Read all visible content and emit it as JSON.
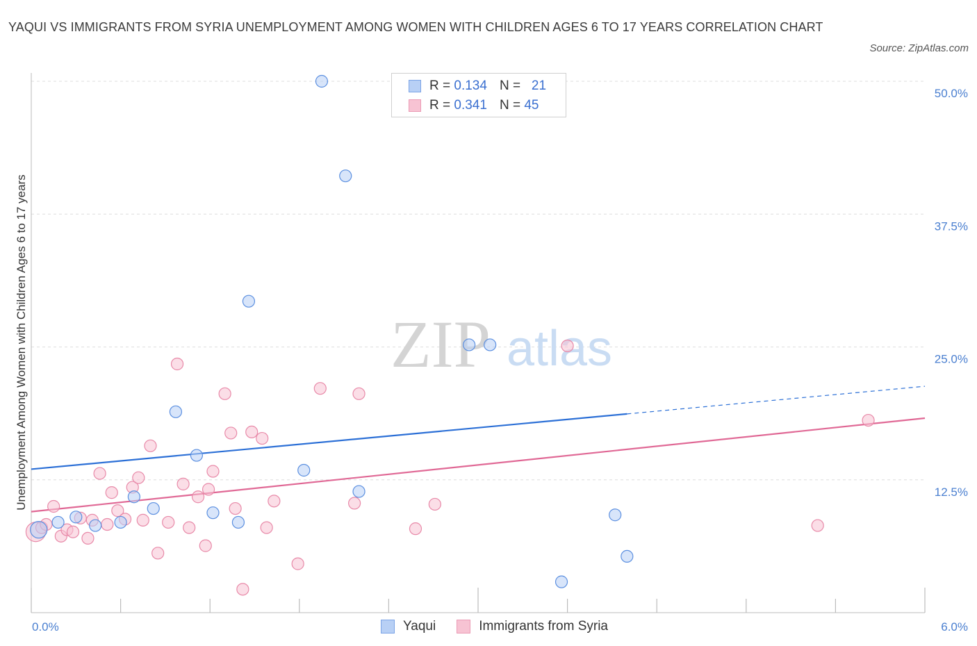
{
  "title": "YAQUI VS IMMIGRANTS FROM SYRIA UNEMPLOYMENT AMONG WOMEN WITH CHILDREN AGES 6 TO 17 YEARS CORRELATION CHART",
  "source": "Source: ZipAtlas.com",
  "watermark": {
    "zip": "ZIP",
    "atlas": "atlas"
  },
  "colors": {
    "blue": "#5b8fe0",
    "blue_fill": "#b8d0f5",
    "blue_line": "#2b6fd6",
    "pink": "#e889a8",
    "pink_fill": "#f7c3d3",
    "pink_line": "#e06895",
    "tick_text": "#4a7fd0"
  },
  "legend": {
    "rows": [
      {
        "r_label": "R =",
        "r_value": "0.134",
        "n_label": "N =",
        "n_value": "21"
      },
      {
        "r_label": "R =",
        "r_value": "0.341",
        "n_label": "N =",
        "n_value": "45"
      }
    ]
  },
  "bottom_legend": {
    "series1": "Yaqui",
    "series2": "Immigrants from Syria"
  },
  "chart_data": {
    "type": "scatter",
    "xlabel": "",
    "ylabel": "Unemployment Among Women with Children Ages 6 to 17 years",
    "xlim": [
      0,
      6
    ],
    "ylim": [
      0,
      50
    ],
    "x_tick_labels": [
      "0.0%",
      "6.0%"
    ],
    "y_tick_labels": [
      "12.5%",
      "25.0%",
      "37.5%",
      "50.0%"
    ],
    "y_ticks": [
      12.5,
      25,
      37.5,
      50
    ],
    "grid": true,
    "series": [
      {
        "name": "Yaqui",
        "points": [
          [
            0.05,
            7.8
          ],
          [
            0.18,
            8.5
          ],
          [
            0.3,
            9.0
          ],
          [
            0.43,
            8.2
          ],
          [
            0.6,
            8.5
          ],
          [
            0.69,
            10.9
          ],
          [
            0.82,
            9.8
          ],
          [
            0.97,
            18.9
          ],
          [
            1.11,
            14.8
          ],
          [
            1.22,
            9.4
          ],
          [
            1.39,
            8.5
          ],
          [
            1.46,
            29.3
          ],
          [
            1.83,
            13.4
          ],
          [
            1.95,
            50.0
          ],
          [
            2.11,
            41.1
          ],
          [
            2.2,
            11.4
          ],
          [
            2.94,
            25.2
          ],
          [
            3.08,
            25.2
          ],
          [
            3.56,
            2.9
          ],
          [
            3.92,
            9.2
          ],
          [
            4.0,
            5.3
          ]
        ],
        "trend": {
          "x0": 0,
          "y0": 13.5,
          "x1": 4.0,
          "y1": 18.7,
          "dash_x1": 6.0,
          "dash_y1": 21.3
        }
      },
      {
        "name": "Immigrants from Syria",
        "points": [
          [
            0.03,
            7.6
          ],
          [
            0.07,
            8.0
          ],
          [
            0.1,
            8.3
          ],
          [
            0.15,
            10.0
          ],
          [
            0.2,
            7.2
          ],
          [
            0.24,
            7.8
          ],
          [
            0.28,
            7.6
          ],
          [
            0.33,
            8.9
          ],
          [
            0.38,
            7.0
          ],
          [
            0.41,
            8.7
          ],
          [
            0.46,
            13.1
          ],
          [
            0.51,
            8.3
          ],
          [
            0.54,
            11.3
          ],
          [
            0.58,
            9.6
          ],
          [
            0.63,
            8.8
          ],
          [
            0.68,
            11.8
          ],
          [
            0.72,
            12.7
          ],
          [
            0.75,
            8.7
          ],
          [
            0.8,
            15.7
          ],
          [
            0.85,
            5.6
          ],
          [
            0.92,
            8.5
          ],
          [
            0.98,
            23.4
          ],
          [
            1.02,
            12.1
          ],
          [
            1.06,
            8.0
          ],
          [
            1.12,
            10.9
          ],
          [
            1.17,
            6.3
          ],
          [
            1.19,
            11.6
          ],
          [
            1.22,
            13.3
          ],
          [
            1.3,
            20.6
          ],
          [
            1.34,
            16.9
          ],
          [
            1.37,
            9.8
          ],
          [
            1.42,
            2.2
          ],
          [
            1.48,
            17.0
          ],
          [
            1.55,
            16.4
          ],
          [
            1.58,
            8.0
          ],
          [
            1.63,
            10.5
          ],
          [
            1.79,
            4.6
          ],
          [
            1.94,
            21.1
          ],
          [
            2.17,
            10.3
          ],
          [
            2.2,
            20.6
          ],
          [
            2.58,
            7.9
          ],
          [
            2.71,
            10.2
          ],
          [
            3.6,
            25.1
          ],
          [
            5.28,
            8.2
          ],
          [
            5.62,
            18.1
          ]
        ],
        "trend": {
          "x0": 0,
          "y0": 9.5,
          "x1": 6.0,
          "y1": 18.3
        }
      }
    ]
  }
}
